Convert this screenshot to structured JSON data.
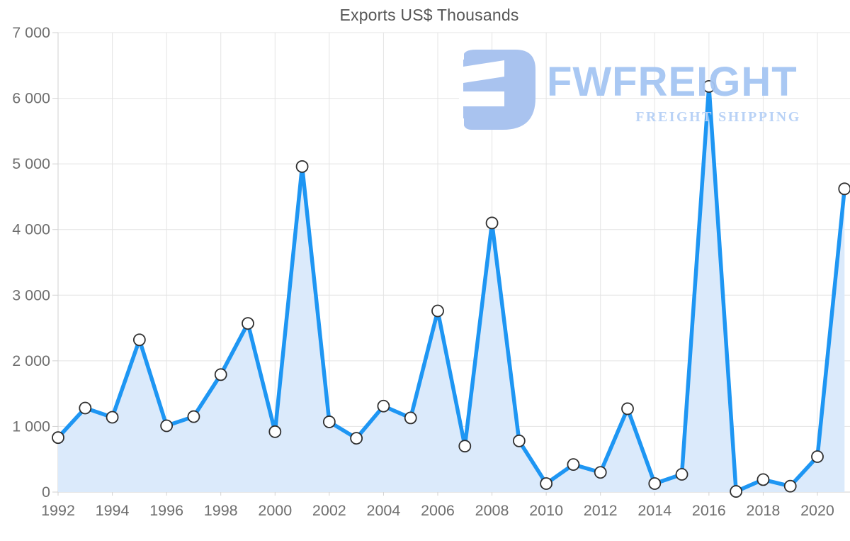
{
  "page": {
    "background": "#ffffff"
  },
  "chart_data": {
    "type": "area",
    "title": "Exports US$ Thousands",
    "series_name": "Exports",
    "x": [
      1992,
      1993,
      1994,
      1995,
      1996,
      1997,
      1998,
      1999,
      2000,
      2001,
      2002,
      2003,
      2004,
      2005,
      2006,
      2007,
      2008,
      2009,
      2010,
      2011,
      2012,
      2013,
      2014,
      2015,
      2016,
      2017,
      2018,
      2019,
      2020,
      2021
    ],
    "values": [
      830,
      1280,
      1140,
      2320,
      1010,
      1150,
      1790,
      2570,
      920,
      4960,
      1070,
      820,
      1310,
      1130,
      2760,
      700,
      4100,
      780,
      130,
      420,
      300,
      1270,
      130,
      270,
      6180,
      10,
      190,
      90,
      540,
      4620
    ],
    "xlabel": "",
    "ylabel": "",
    "ylim": [
      0,
      7000
    ],
    "y_tick_step": 1000,
    "y_tick_labels": [
      "0",
      "1 000",
      "2 000",
      "3 000",
      "4 000",
      "5 000",
      "6 000",
      "7 000"
    ],
    "x_tick_labels": [
      "1992",
      "1994",
      "1996",
      "1998",
      "2000",
      "2002",
      "2004",
      "2006",
      "2008",
      "2010",
      "2012",
      "2014",
      "2016",
      "2018",
      "2020"
    ],
    "grid": "on",
    "legend_position": "none",
    "colors": {
      "line": "#1e96f3",
      "area_fill": "#dbeafb",
      "marker_fill": "#ffffff",
      "marker_stroke": "#2f2f2f",
      "gridline": "#e4e4e4",
      "axis_line": "#d2d2d2",
      "tick_text": "#6f6f6f",
      "title_text": "#565656"
    }
  },
  "watermark": {
    "brand": "FWFREIGHT",
    "tagline": "FREIGHT SHIPPING",
    "brand_color": "#a5c6f3",
    "tagline_color": "#b9d2f6",
    "icon": "fwfreight-logo-icon",
    "icon_color": "#a9c3ef"
  }
}
